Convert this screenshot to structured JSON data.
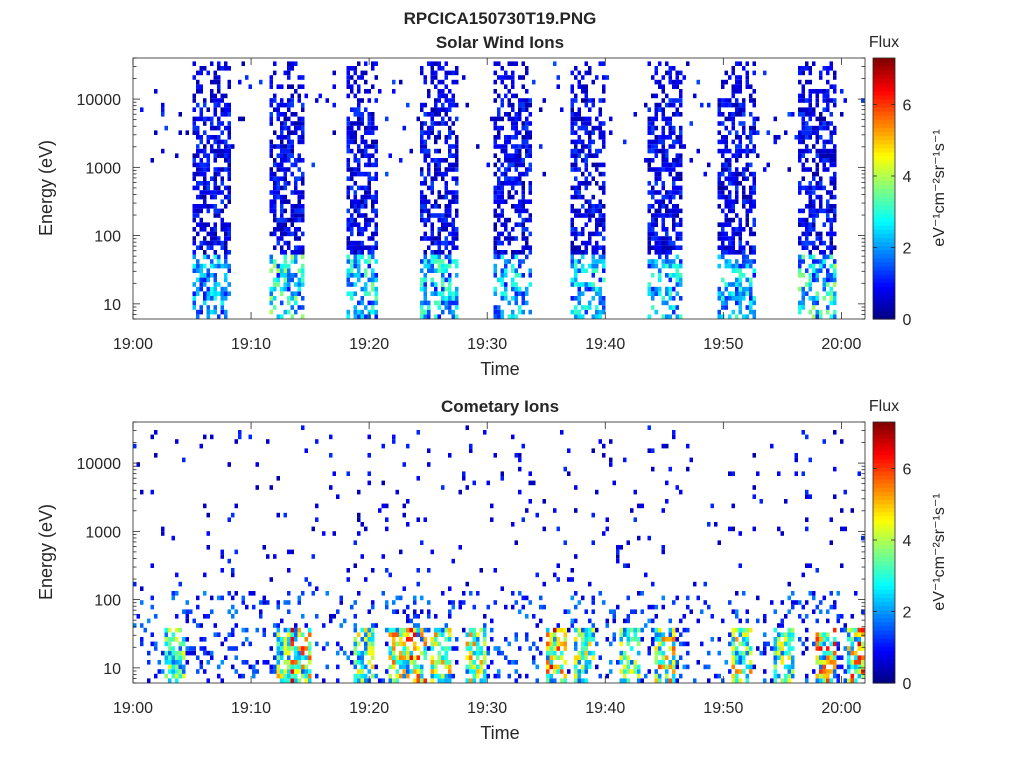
{
  "figure_title": "RPCICA150730T19.PNG",
  "colors": {
    "colormap": "jet",
    "axis": "#262626",
    "background": "#ffffff"
  },
  "chart_data": [
    {
      "type": "heatmap",
      "title": "Solar Wind Ions",
      "xlabel": "Time",
      "ylabel": "Energy (eV)",
      "yscale": "log",
      "xlim": [
        "19:00",
        "20:02"
      ],
      "ylim": [
        6,
        40000
      ],
      "xticks": [
        "19:00",
        "19:10",
        "19:20",
        "19:30",
        "19:40",
        "19:50",
        "20:00"
      ],
      "yticks": [
        "10",
        "100",
        "1000",
        "10000"
      ],
      "colorbar": {
        "label": "eV⁻¹cm⁻²sr⁻¹s⁻¹",
        "title": "Flux",
        "range": [
          0,
          7.3
        ],
        "ticks": [
          "0",
          "2",
          "4",
          "6"
        ]
      },
      "grid": false,
      "bursts": [
        {
          "start": "19:05.0",
          "end": "19:08.3",
          "peak_flux": 3.0
        },
        {
          "start": "19:11.5",
          "end": "19:14.5",
          "peak_flux": 4.0
        },
        {
          "start": "19:17.8",
          "end": "19:20.5",
          "peak_flux": 3.5
        },
        {
          "start": "19:24.3",
          "end": "19:27.3",
          "peak_flux": 3.5
        },
        {
          "start": "19:30.5",
          "end": "19:33.5",
          "peak_flux": 3.2
        },
        {
          "start": "19:37.0",
          "end": "19:40.0",
          "peak_flux": 3.3
        },
        {
          "start": "19:43.5",
          "end": "19:46.5",
          "peak_flux": 3.3
        },
        {
          "start": "19:49.5",
          "end": "19:52.5",
          "peak_flux": 3.3
        },
        {
          "start": "19:56.3",
          "end": "19:59.3",
          "peak_flux": 4.0
        }
      ]
    },
    {
      "type": "heatmap",
      "title": "Cometary Ions",
      "xlabel": "Time",
      "ylabel": "Energy (eV)",
      "yscale": "log",
      "xlim": [
        "19:00",
        "20:02"
      ],
      "ylim": [
        6,
        40000
      ],
      "xticks": [
        "19:00",
        "19:10",
        "19:20",
        "19:30",
        "19:40",
        "19:50",
        "20:00"
      ],
      "yticks": [
        "10",
        "100",
        "1000",
        "10000"
      ],
      "colorbar": {
        "label": "eV⁻¹cm⁻²sr⁻¹s⁻¹",
        "title": "Flux",
        "range": [
          0,
          7.3
        ],
        "ticks": [
          "0",
          "2",
          "4",
          "6"
        ]
      },
      "grid": false,
      "low_energy_patches": [
        {
          "time": "19:03.5",
          "flux": 4.5
        },
        {
          "time": "19:12.8",
          "flux": 5.3
        },
        {
          "time": "19:14.0",
          "flux": 6.8
        },
        {
          "time": "19:19.5",
          "flux": 5.0
        },
        {
          "time": "19:22.5",
          "flux": 5.8
        },
        {
          "time": "19:23.8",
          "flux": 6.9
        },
        {
          "time": "19:26.0",
          "flux": 5.5
        },
        {
          "time": "19:29.0",
          "flux": 5.5
        },
        {
          "time": "19:35.8",
          "flux": 6.8
        },
        {
          "time": "19:38.0",
          "flux": 5.0
        },
        {
          "time": "19:42.0",
          "flux": 4.8
        },
        {
          "time": "19:45.0",
          "flux": 5.8
        },
        {
          "time": "19:51.5",
          "flux": 5.6
        },
        {
          "time": "19:55.0",
          "flux": 4.8
        },
        {
          "time": "19:58.5",
          "flux": 6.5
        },
        {
          "time": "20:01.3",
          "flux": 6.8
        }
      ]
    }
  ]
}
